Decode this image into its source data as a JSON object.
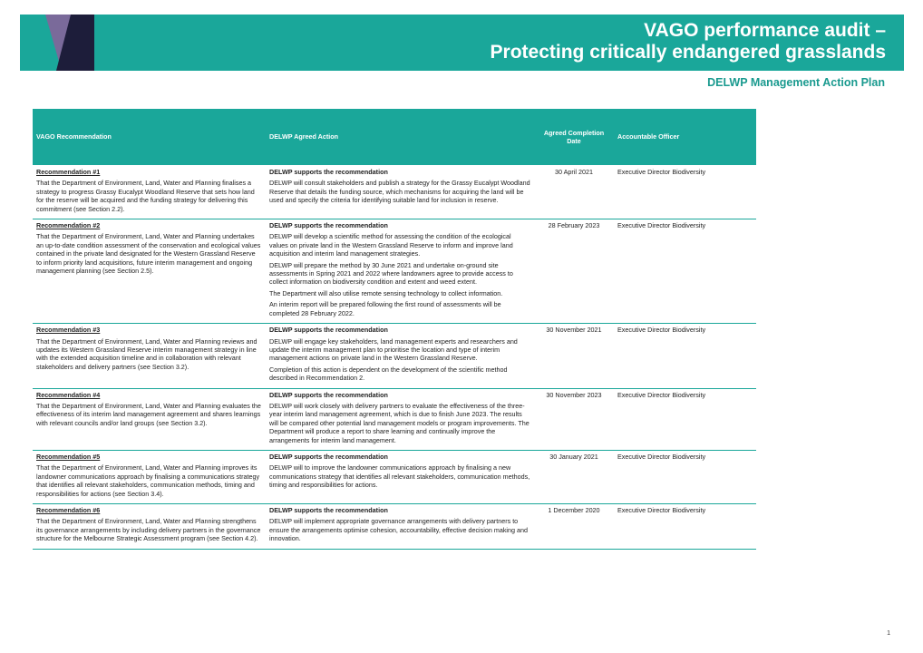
{
  "header": {
    "title_line1": "VAGO performance audit –",
    "title_line2": "Protecting critically endangered grasslands",
    "subtitle": "DELWP Management Action Plan",
    "colors": {
      "accent": "#1aa79a",
      "logo_dark": "#1d1d3a",
      "logo_purple": "#7a6a9a"
    }
  },
  "table": {
    "headers": {
      "recommendation": "VAGO Recommendation",
      "action": "DELWP Agreed Action",
      "date": "Agreed Completion Date",
      "officer": "Accountable Officer"
    },
    "rows": [
      {
        "rec_title": "Recommendation #1",
        "rec_text": "That the Department of Environment, Land, Water and Planning finalises a strategy to progress Grassy Eucalypt Woodland Reserve that sets how land for the reserve will be acquired and the funding strategy for delivering this commitment (see Section 2.2).",
        "action_title": "DELWP supports the recommendation",
        "action_paras": [
          "DELWP will consult stakeholders and publish a strategy for the Grassy Eucalypt Woodland Reserve that details the funding source, which mechanisms for acquiring the land will be used and specify the criteria for identifying suitable land for inclusion in reserve."
        ],
        "date": "30 April 2021",
        "officer": "Executive Director Biodiversity"
      },
      {
        "rec_title": "Recommendation #2",
        "rec_text": "That the Department of Environment, Land, Water and Planning undertakes an up-to-date condition assessment of the conservation and ecological values contained in the private land designated for the Western Grassland Reserve to inform priority land acquisitions, future interim management and ongoing management planning (see Section 2.5).",
        "action_title": "DELWP supports the recommendation",
        "action_paras": [
          "DELWP will develop a scientific method for assessing the condition of the ecological values on private land in the Western Grassland Reserve to inform and improve land acquisition and interim land management strategies.",
          "DELWP will prepare the method by 30 June 2021 and undertake on-ground site assessments in Spring 2021 and 2022 where landowners agree to provide access to collect information on biodiversity condition and extent and weed extent.",
          "The Department will also utilise remote sensing technology to collect information.",
          "An interim report will be prepared following the first round of assessments will be completed 28 February 2022."
        ],
        "date": "28 February 2023",
        "officer": "Executive Director Biodiversity"
      },
      {
        "rec_title": "Recommendation #3",
        "rec_text": "That the Department of Environment, Land, Water and Planning reviews and updates its Western Grassland Reserve interim management strategy in line with the extended acquisition timeline and in collaboration with relevant stakeholders and delivery partners (see Section 3.2).",
        "action_title": "DELWP supports the recommendation",
        "action_paras": [
          "DELWP will engage key stakeholders, land management experts and researchers and update the interim management plan to prioritise the location and type of interim management actions on private land in the Western Grassland Reserve.",
          "Completion of this action is dependent on the development of the scientific method described in Recommendation 2."
        ],
        "date": "30 November 2021",
        "officer": "Executive Director Biodiversity"
      },
      {
        "rec_title": "Recommendation #4",
        "rec_text": "That the Department of Environment, Land, Water and Planning evaluates the effectiveness of its interim land management agreement and shares learnings with relevant councils and/or land groups (see Section 3.2).",
        "action_title": "DELWP supports the recommendation",
        "action_paras": [
          "DELWP will work closely with delivery partners to evaluate the effectiveness of the three-year interim land management agreement, which is due to finish June 2023. The results will be compared other potential land management models or program improvements. The Department will produce a report to share learning and continually improve the arrangements for interim land management."
        ],
        "date": "30 November 2023",
        "officer": "Executive Director Biodiversity"
      },
      {
        "rec_title": "Recommendation #5",
        "rec_text": "That the Department of Environment, Land, Water and Planning improves its landowner communications approach by finalising a communications strategy that identifies all relevant stakeholders, communication methods, timing and responsibilities for actions (see Section 3.4).",
        "action_title": "DELWP supports the recommendation",
        "action_paras": [
          "DELWP will to improve the landowner communications approach by finalising a new communications strategy that identifies all relevant stakeholders, communication methods, timing and responsibilities for actions."
        ],
        "date": "30 January 2021",
        "officer": "Executive Director Biodiversity"
      },
      {
        "rec_title": "Recommendation #6",
        "rec_text": "That the Department of Environment, Land, Water and Planning strengthens its governance arrangements by including delivery partners in the governance structure for the Melbourne Strategic Assessment program (see Section 4.2).",
        "action_title": "DELWP supports the recommendation",
        "action_paras": [
          "DELWP will implement appropriate governance arrangements with delivery partners to ensure the arrangements optimise cohesion, accountability, effective decision making and innovation."
        ],
        "date": "1 December 2020",
        "officer": "Executive Director Biodiversity"
      }
    ]
  },
  "footer": {
    "page_number": "1"
  }
}
